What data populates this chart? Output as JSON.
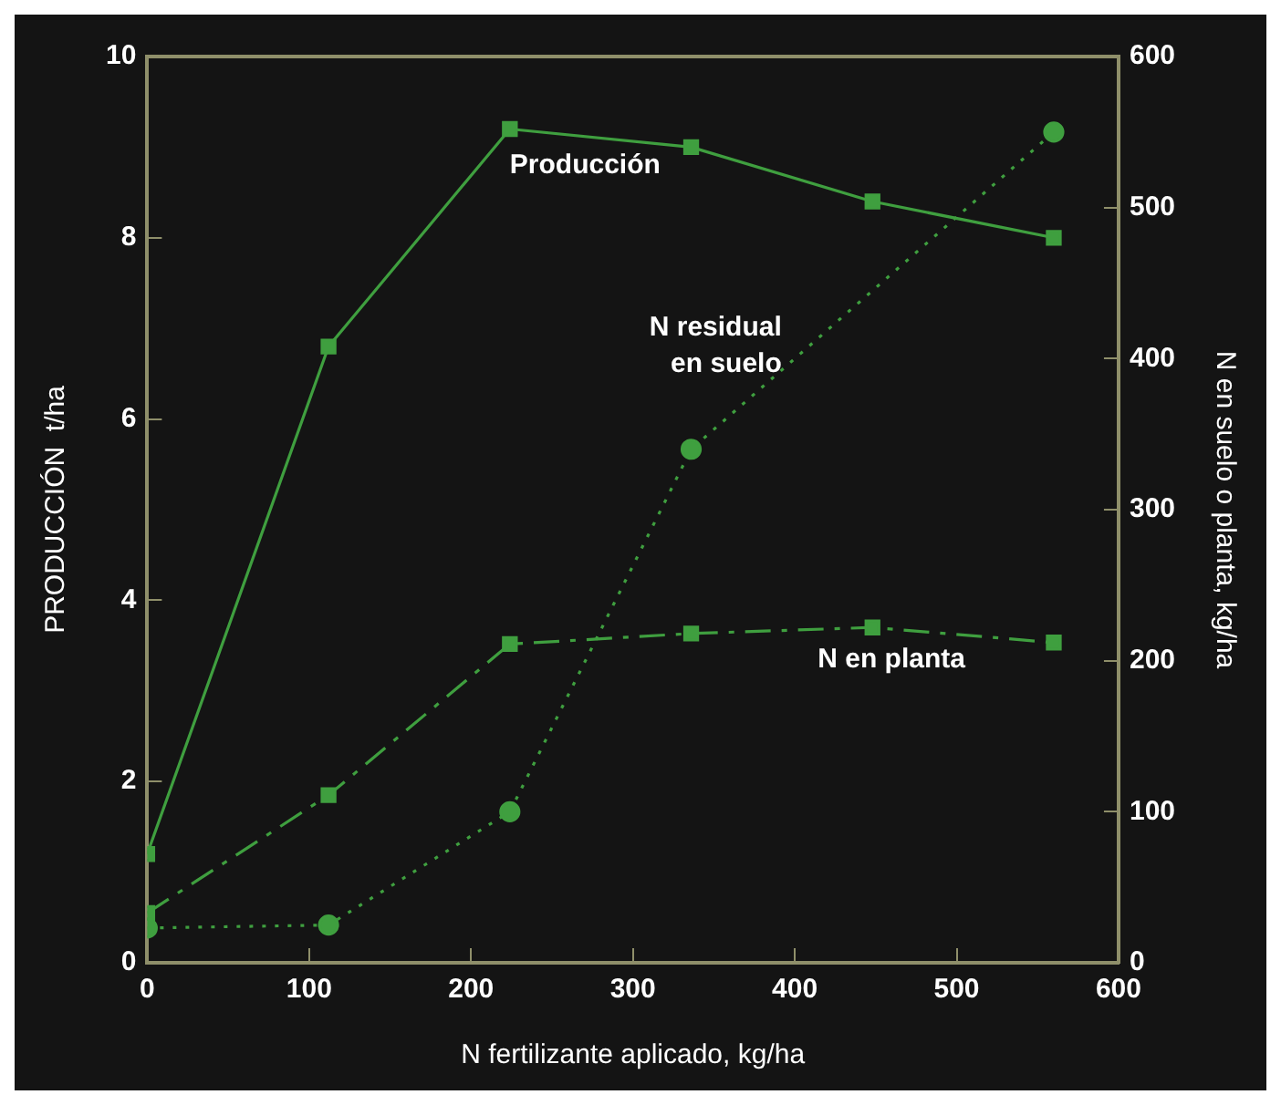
{
  "chart_data": {
    "type": "line",
    "xlabel": "N fertilizante aplicado, kg/ha",
    "ylabel": "PRODUCCIÓN  t/ha",
    "y2label": "N en suelo o planta, kg/ha",
    "x": [
      0,
      112,
      224,
      336,
      448,
      560
    ],
    "xlim": [
      0,
      600
    ],
    "xticks": [
      0,
      100,
      200,
      300,
      400,
      500,
      600
    ],
    "ylim": [
      0,
      10
    ],
    "yticks": [
      0,
      2,
      4,
      6,
      8,
      10
    ],
    "y2lim": [
      0,
      600
    ],
    "y2ticks": [
      0,
      100,
      200,
      300,
      400,
      500,
      600
    ],
    "grid": false,
    "legend": false,
    "series": [
      {
        "name": "Producción",
        "color": "#3f9f3f",
        "values": [
          1.2,
          6.8,
          9.2,
          9.0,
          8.4,
          8.0
        ],
        "marker": "square",
        "line_style": "solid"
      },
      {
        "name": "N en planta",
        "color": "#3f9f3f",
        "axis": "y2",
        "values": [
          33,
          111,
          211,
          218,
          222,
          212
        ],
        "marker": "square",
        "line_style": "dashed"
      },
      {
        "name": "N residual en suelo",
        "color": "#3f9f3f",
        "axis": "y2",
        "x": [
          0,
          112,
          224,
          336,
          560
        ],
        "values": [
          23,
          25,
          100,
          340,
          550
        ],
        "marker": "circle",
        "line_style": "dotted"
      }
    ]
  }
}
